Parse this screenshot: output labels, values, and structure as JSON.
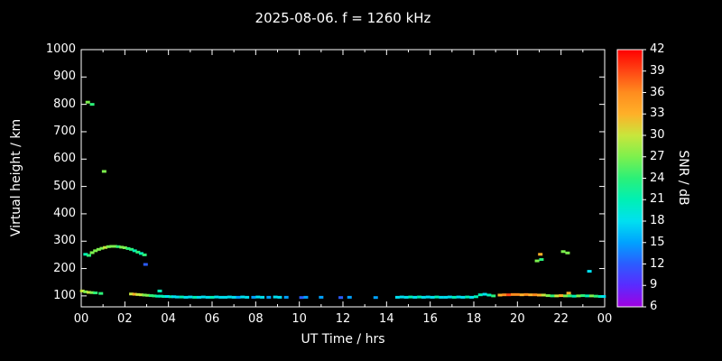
{
  "title": "2025-08-06. f = 1260 kHz",
  "chart_data": {
    "type": "scatter",
    "title": "2025-08-06. f = 1260 kHz",
    "xlabel": "UT Time / hrs",
    "ylabel": "Virtual height / km",
    "colorbar_label": "SNR / dB",
    "xlim": [
      0,
      24
    ],
    "ylim": [
      60,
      1000
    ],
    "background": "#000000",
    "frame_color": "#ffffff",
    "x_ticks": [
      [
        0,
        "00"
      ],
      [
        2,
        "02"
      ],
      [
        4,
        "04"
      ],
      [
        6,
        "06"
      ],
      [
        8,
        "08"
      ],
      [
        10,
        "10"
      ],
      [
        12,
        "12"
      ],
      [
        14,
        "14"
      ],
      [
        16,
        "16"
      ],
      [
        18,
        "18"
      ],
      [
        20,
        "20"
      ],
      [
        22,
        "22"
      ],
      [
        24,
        "00"
      ]
    ],
    "y_ticks": [
      100,
      200,
      300,
      400,
      500,
      600,
      700,
      800,
      900,
      1000
    ],
    "colorbar_ticks": [
      6,
      9,
      12,
      15,
      18,
      21,
      24,
      27,
      30,
      33,
      36,
      39,
      42
    ],
    "palette": [
      [
        6,
        "#a000e0"
      ],
      [
        9,
        "#5a2bff"
      ],
      [
        12,
        "#2b5cff"
      ],
      [
        15,
        "#00a2ff"
      ],
      [
        18,
        "#00e0f0"
      ],
      [
        21,
        "#00f0b4"
      ],
      [
        24,
        "#2bf078"
      ],
      [
        27,
        "#7df04d"
      ],
      [
        30,
        "#c8e63c"
      ],
      [
        33,
        "#ffb028"
      ],
      [
        36,
        "#ff8c1e"
      ],
      [
        39,
        "#ff4614"
      ],
      [
        42,
        "#ff0000"
      ]
    ],
    "points": [
      [
        0.3,
        808,
        27
      ],
      [
        0.5,
        800,
        24
      ],
      [
        1.05,
        555,
        27
      ],
      [
        0.2,
        252,
        21
      ],
      [
        0.35,
        248,
        24
      ],
      [
        0.5,
        258,
        27
      ],
      [
        0.65,
        265,
        27
      ],
      [
        0.8,
        270,
        27
      ],
      [
        0.95,
        274,
        27
      ],
      [
        1.1,
        277,
        30
      ],
      [
        1.25,
        280,
        27
      ],
      [
        1.4,
        281,
        27
      ],
      [
        1.55,
        281,
        27
      ],
      [
        1.7,
        280,
        24
      ],
      [
        1.85,
        278,
        27
      ],
      [
        2.0,
        276,
        27
      ],
      [
        2.15,
        273,
        24
      ],
      [
        2.3,
        270,
        24
      ],
      [
        2.45,
        265,
        21
      ],
      [
        2.6,
        260,
        24
      ],
      [
        2.75,
        255,
        21
      ],
      [
        2.9,
        250,
        24
      ],
      [
        2.95,
        215,
        12
      ],
      [
        20.9,
        228,
        27
      ],
      [
        21.1,
        233,
        24
      ],
      [
        21.05,
        252,
        33
      ],
      [
        22.1,
        262,
        27
      ],
      [
        22.3,
        257,
        27
      ],
      [
        23.3,
        190,
        18
      ],
      [
        0.05,
        118,
        30
      ],
      [
        0.2,
        115,
        27
      ],
      [
        0.35,
        113,
        30
      ],
      [
        0.5,
        112,
        27
      ],
      [
        0.65,
        111,
        24
      ],
      [
        0.9,
        109,
        24
      ],
      [
        2.3,
        107,
        30
      ],
      [
        2.45,
        106,
        33
      ],
      [
        2.6,
        105,
        30
      ],
      [
        2.75,
        104,
        30
      ],
      [
        2.9,
        103,
        27
      ],
      [
        3.05,
        102,
        27
      ],
      [
        3.2,
        101,
        24
      ],
      [
        3.35,
        100,
        24
      ],
      [
        3.5,
        99,
        21
      ],
      [
        3.6,
        118,
        21
      ],
      [
        3.65,
        99,
        21
      ],
      [
        3.8,
        98,
        21
      ],
      [
        3.95,
        98,
        18
      ],
      [
        4.1,
        97,
        21
      ],
      [
        4.25,
        97,
        18
      ],
      [
        4.4,
        96,
        18
      ],
      [
        4.6,
        96,
        21
      ],
      [
        4.8,
        95,
        18
      ],
      [
        5.0,
        96,
        18
      ],
      [
        5.2,
        95,
        21
      ],
      [
        5.4,
        95,
        18
      ],
      [
        5.6,
        96,
        18
      ],
      [
        5.8,
        95,
        18
      ],
      [
        6.0,
        95,
        21
      ],
      [
        6.2,
        96,
        18
      ],
      [
        6.4,
        95,
        18
      ],
      [
        6.6,
        95,
        18
      ],
      [
        6.8,
        96,
        18
      ],
      [
        7.0,
        95,
        18
      ],
      [
        7.2,
        95,
        15
      ],
      [
        7.4,
        96,
        18
      ],
      [
        7.6,
        95,
        18
      ],
      [
        7.9,
        95,
        15
      ],
      [
        8.1,
        96,
        18
      ],
      [
        8.3,
        95,
        18
      ],
      [
        8.6,
        95,
        15
      ],
      [
        8.9,
        96,
        18
      ],
      [
        9.1,
        95,
        18
      ],
      [
        9.4,
        95,
        15
      ],
      [
        10.1,
        94,
        12
      ],
      [
        10.3,
        95,
        15
      ],
      [
        11.0,
        95,
        15
      ],
      [
        11.9,
        94,
        12
      ],
      [
        12.3,
        95,
        15
      ],
      [
        13.5,
        94,
        15
      ],
      [
        14.5,
        95,
        18
      ],
      [
        14.7,
        96,
        18
      ],
      [
        14.9,
        95,
        18
      ],
      [
        15.1,
        96,
        21
      ],
      [
        15.3,
        95,
        18
      ],
      [
        15.5,
        96,
        21
      ],
      [
        15.7,
        95,
        18
      ],
      [
        15.9,
        96,
        18
      ],
      [
        16.1,
        95,
        18
      ],
      [
        16.3,
        96,
        21
      ],
      [
        16.5,
        95,
        18
      ],
      [
        16.7,
        95,
        18
      ],
      [
        16.9,
        96,
        18
      ],
      [
        17.1,
        95,
        21
      ],
      [
        17.3,
        96,
        18
      ],
      [
        17.5,
        95,
        18
      ],
      [
        17.7,
        96,
        21
      ],
      [
        17.9,
        95,
        18
      ],
      [
        18.1,
        97,
        21
      ],
      [
        18.3,
        104,
        21
      ],
      [
        18.5,
        106,
        18
      ],
      [
        18.7,
        103,
        21
      ],
      [
        18.9,
        100,
        24
      ],
      [
        19.2,
        103,
        33
      ],
      [
        19.4,
        104,
        36
      ],
      [
        19.6,
        104,
        39
      ],
      [
        19.8,
        105,
        36
      ],
      [
        20.0,
        105,
        36
      ],
      [
        20.2,
        104,
        33
      ],
      [
        20.4,
        105,
        36
      ],
      [
        20.6,
        104,
        33
      ],
      [
        20.8,
        104,
        36
      ],
      [
        21.0,
        103,
        33
      ],
      [
        21.2,
        103,
        30
      ],
      [
        21.4,
        101,
        27
      ],
      [
        21.6,
        100,
        24
      ],
      [
        21.8,
        100,
        30
      ],
      [
        22.0,
        101,
        33
      ],
      [
        22.2,
        100,
        27
      ],
      [
        22.35,
        110,
        33
      ],
      [
        22.4,
        100,
        24
      ],
      [
        22.6,
        99,
        21
      ],
      [
        22.8,
        100,
        27
      ],
      [
        23.0,
        101,
        24
      ],
      [
        23.2,
        100,
        21
      ],
      [
        23.4,
        100,
        27
      ],
      [
        23.6,
        99,
        24
      ],
      [
        23.8,
        98,
        21
      ],
      [
        23.95,
        98,
        18
      ]
    ]
  }
}
